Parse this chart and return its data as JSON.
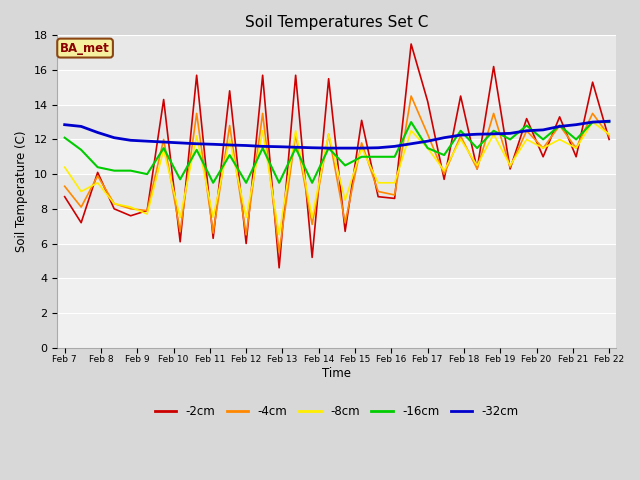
{
  "title": "Soil Temperatures Set C",
  "xlabel": "Time",
  "ylabel": "Soil Temperature (C)",
  "ylim": [
    0,
    18
  ],
  "yticks": [
    0,
    2,
    4,
    6,
    8,
    10,
    12,
    14,
    16,
    18
  ],
  "fig_bg": "#d8d8d8",
  "plot_bg_bands": [
    [
      16,
      18,
      "#e8e8e8"
    ],
    [
      14,
      16,
      "#f0f0f0"
    ],
    [
      12,
      14,
      "#e8e8e8"
    ],
    [
      10,
      12,
      "#f0f0f0"
    ],
    [
      8,
      10,
      "#e8e8e8"
    ],
    [
      6,
      8,
      "#f0f0f0"
    ],
    [
      4,
      6,
      "#e8e8e8"
    ],
    [
      0,
      4,
      "#f0f0f0"
    ]
  ],
  "legend_label": "BA_met",
  "x_labels": [
    "Feb 7",
    "Feb 8",
    "Feb 9",
    "Feb 10",
    "Feb 11",
    "Feb 12",
    "Feb 13",
    "Feb 14",
    "Feb 15",
    "Feb 16",
    "Feb 17",
    "Feb 18",
    "Feb 19",
    "Feb 20",
    "Feb 21",
    "Feb 22"
  ],
  "series": {
    "-2cm": {
      "color": "#cc0000",
      "linewidth": 1.2,
      "data": [
        8.7,
        7.2,
        10.1,
        8.0,
        7.6,
        7.9,
        14.3,
        6.1,
        15.7,
        6.3,
        14.8,
        6.0,
        15.7,
        4.6,
        15.7,
        5.2,
        15.5,
        6.7,
        13.1,
        8.7,
        8.6,
        17.5,
        14.2,
        9.7,
        14.5,
        10.3,
        16.2,
        10.3,
        13.2,
        11.0,
        13.3,
        11.0,
        15.3,
        12.0
      ]
    },
    "-4cm": {
      "color": "#ff8800",
      "linewidth": 1.2,
      "data": [
        9.3,
        8.1,
        9.9,
        8.3,
        8.0,
        7.9,
        12.0,
        6.7,
        13.5,
        6.6,
        12.8,
        6.5,
        13.5,
        5.5,
        12.3,
        7.1,
        12.3,
        7.2,
        11.8,
        9.0,
        8.8,
        14.5,
        12.3,
        10.0,
        12.2,
        10.3,
        13.5,
        10.4,
        12.5,
        11.5,
        12.8,
        11.5,
        13.5,
        12.2
      ]
    },
    "-8cm": {
      "color": "#ffee00",
      "linewidth": 1.2,
      "data": [
        10.4,
        9.0,
        9.5,
        8.3,
        8.1,
        7.7,
        11.4,
        7.5,
        12.2,
        7.5,
        12.0,
        7.5,
        12.5,
        6.5,
        12.5,
        7.5,
        12.3,
        8.5,
        11.5,
        9.5,
        9.5,
        12.5,
        11.5,
        10.2,
        12.0,
        10.5,
        12.3,
        10.5,
        12.0,
        11.5,
        12.0,
        11.5,
        13.0,
        12.3
      ]
    },
    "-16cm": {
      "color": "#00cc00",
      "linewidth": 1.5,
      "data": [
        12.1,
        11.4,
        10.4,
        10.2,
        10.2,
        10.0,
        11.5,
        9.7,
        11.4,
        9.5,
        11.1,
        9.5,
        11.5,
        9.5,
        11.5,
        9.5,
        11.5,
        10.5,
        11.0,
        11.0,
        11.0,
        13.0,
        11.5,
        11.1,
        12.5,
        11.5,
        12.5,
        12.0,
        12.8,
        12.0,
        12.8,
        12.0,
        13.0,
        13.0
      ]
    },
    "-32cm": {
      "color": "#0000cc",
      "linewidth": 2.0,
      "data": [
        12.85,
        12.75,
        12.4,
        12.1,
        11.95,
        11.9,
        11.85,
        11.8,
        11.75,
        11.72,
        11.68,
        11.65,
        11.6,
        11.58,
        11.55,
        11.52,
        11.5,
        11.5,
        11.5,
        11.52,
        11.6,
        11.75,
        11.9,
        12.1,
        12.25,
        12.3,
        12.32,
        12.35,
        12.5,
        12.55,
        12.75,
        12.85,
        13.0,
        13.05
      ]
    }
  }
}
